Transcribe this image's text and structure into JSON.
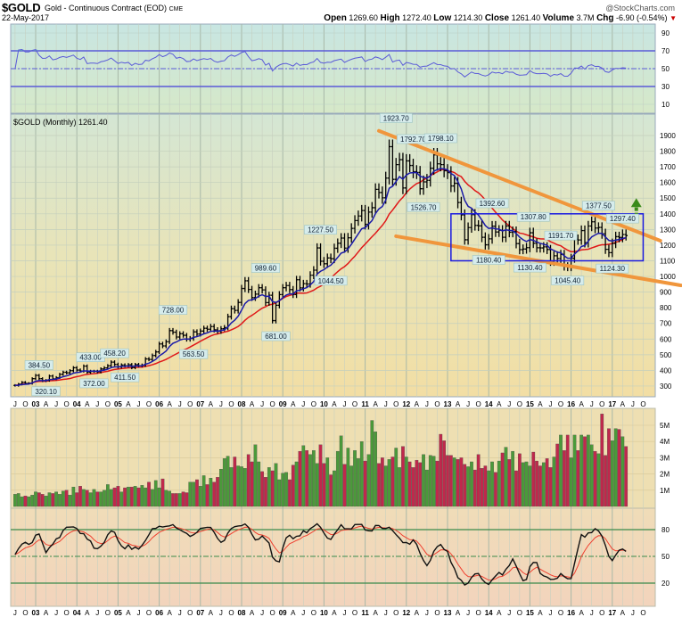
{
  "header": {
    "symbol": "$GOLD",
    "description": "Gold - Continuous Contract (EOD)",
    "exchange": "CME",
    "date": "22-May-2017",
    "brand": "@StockCharts.com",
    "quote": {
      "open_label": "Open",
      "open": "1269.60",
      "high_label": "High",
      "high": "1272.40",
      "low_label": "Low",
      "low": "1214.30",
      "close_label": "Close",
      "close": "1261.40",
      "volume_label": "Volume",
      "volume": "3.7M",
      "chg_label": "Chg",
      "chg": "-6.90 (-0.54%)",
      "chg_icon": "down-triangle-icon"
    }
  },
  "colors": {
    "bars": "#000000",
    "ma_fast": "#1a1aa8",
    "ma_slow": "#e01818",
    "vol_up": "#4a9a3a",
    "vol_down": "#c0284c",
    "trendline": "#f0963c",
    "box": "#1a1ae0",
    "arrow": "#3a8a1a",
    "rsi": "#5a5ad8",
    "rsi_fill": "#5ab4b0",
    "stoch_k": "#111111",
    "stoch_d": "#f04030",
    "stoch_lines": "#3a8a4a"
  },
  "chart_data": {
    "type": "ohlc",
    "title": "$GOLD (Monthly) 1261.40",
    "start_month": "2002-07",
    "period": "monthly",
    "close": [
      304,
      312,
      324,
      317,
      317,
      347,
      368,
      347,
      334,
      336,
      364,
      346,
      354,
      375,
      388,
      384,
      398,
      417,
      402,
      396,
      427,
      388,
      394,
      394,
      391,
      409,
      416,
      429,
      453,
      438,
      422,
      434,
      429,
      436,
      418,
      437,
      430,
      433,
      473,
      470,
      495,
      518,
      569,
      556,
      583,
      654,
      644,
      613,
      634,
      624,
      599,
      604,
      646,
      632,
      651,
      669,
      663,
      680,
      659,
      650,
      666,
      673,
      743,
      794,
      783,
      834,
      923,
      972,
      917,
      865,
      887,
      928,
      914,
      833,
      880,
      718,
      816,
      884,
      928,
      942,
      916,
      884,
      979,
      927,
      954,
      952,
      1008,
      1040,
      1182,
      1097,
      1081,
      1118,
      1113,
      1180,
      1212,
      1245,
      1181,
      1247,
      1307,
      1357,
      1386,
      1421,
      1333,
      1411,
      1439,
      1556,
      1536,
      1502,
      1628,
      1829,
      1620,
      1714,
      1746,
      1565,
      1738,
      1709,
      1669,
      1664,
      1560,
      1604,
      1614,
      1691,
      1776,
      1719,
      1714,
      1675,
      1663,
      1578,
      1595,
      1472,
      1393,
      1234,
      1312,
      1395,
      1326,
      1323,
      1250,
      1202,
      1240,
      1321,
      1284,
      1295,
      1250,
      1322,
      1282,
      1287,
      1210,
      1171,
      1175,
      1184,
      1279,
      1212,
      1183,
      1182,
      1189,
      1172,
      1095,
      1132,
      1114,
      1141,
      1064,
      1060,
      1116,
      1237,
      1233,
      1293,
      1216,
      1322,
      1349,
      1309,
      1313,
      1273,
      1173,
      1152,
      1211,
      1254,
      1249,
      1268,
      1261
    ],
    "volume_millions": [
      0.75,
      0.8,
      0.6,
      0.65,
      0.6,
      0.7,
      0.9,
      0.85,
      0.75,
      0.65,
      0.85,
      0.8,
      0.9,
      0.75,
      0.95,
      1.0,
      0.7,
      1.2,
      0.85,
      1.25,
      1.05,
      1.0,
      0.85,
      1.05,
      0.9,
      0.9,
      1.0,
      1.35,
      1.05,
      1.15,
      1.25,
      0.9,
      1.15,
      1.2,
      1.2,
      1.25,
      1.15,
      1.3,
      1.15,
      1.5,
      1.05,
      1.6,
      1.15,
      1.7,
      1.0,
      0.95,
      0.8,
      0.8,
      0.8,
      0.9,
      0.85,
      1.5,
      1.5,
      1.65,
      1.25,
      1.9,
      1.35,
      1.75,
      1.5,
      1.8,
      2.3,
      2.95,
      3.1,
      2.4,
      3.05,
      2.5,
      2.45,
      2.35,
      3.2,
      2.75,
      3.8,
      2.75,
      2.15,
      1.8,
      2.4,
      2.2,
      2.65,
      1.65,
      2.05,
      2.1,
      1.65,
      2.55,
      2.75,
      3.4,
      3.75,
      3.45,
      3.2,
      3.45,
      2.65,
      3.8,
      2.65,
      3.0,
      1.95,
      2.2,
      3.4,
      4.35,
      2.6,
      3.6,
      2.5,
      3.45,
      2.95,
      4.0,
      2.8,
      3.2,
      5.3,
      4.6,
      2.65,
      3.0,
      2.5,
      2.9,
      3.05,
      3.6,
      2.4,
      3.7,
      3.05,
      2.75,
      2.4,
      2.85,
      2.7,
      3.2,
      2.25,
      3.15,
      3.1,
      2.8,
      4.45,
      4.05,
      3.15,
      3.15,
      3.0,
      2.9,
      3.0,
      2.6,
      2.45,
      2.75,
      2.25,
      3.2,
      2.35,
      2.5,
      2.2,
      2.75,
      2.1,
      2.8,
      3.3,
      3.65,
      2.9,
      3.4,
      2.2,
      3.25,
      2.7,
      2.75,
      2.5,
      3.35,
      2.8,
      2.5,
      2.7,
      2.95,
      2.4,
      3.05,
      3.85,
      4.4,
      3.45,
      4.4,
      3.0,
      4.4,
      3.45,
      4.4,
      4.3,
      4.4,
      3.8,
      3.4,
      3.25,
      5.7,
      3.15,
      4.8,
      4.05,
      4.8,
      4.75,
      4.3,
      3.7
    ],
    "price_axis": {
      "min": 250,
      "max": 1950,
      "ticks": [
        "300",
        "400",
        "500",
        "600",
        "700",
        "800",
        "900",
        "1000",
        "1100",
        "1200",
        "1300",
        "1400",
        "1500",
        "1600",
        "1700",
        "1800",
        "1900"
      ]
    },
    "rsi_axis": {
      "ticks": [
        "10",
        "30",
        "50",
        "70",
        "90"
      ],
      "levels": [
        30,
        50,
        70
      ]
    },
    "volume_axis": {
      "ticks": [
        "1M",
        "2M",
        "3M",
        "4M",
        "5M"
      ]
    },
    "stoch_axis": {
      "ticks": [
        "20",
        "50",
        "80"
      ],
      "levels": [
        20,
        50,
        80
      ]
    },
    "x_ticks": [
      "J",
      "O",
      "03",
      "A",
      "J",
      "O",
      "04",
      "A",
      "J",
      "O",
      "05",
      "A",
      "J",
      "O",
      "06",
      "A",
      "J",
      "O",
      "07",
      "A",
      "J",
      "O",
      "08",
      "A",
      "J",
      "O",
      "09",
      "A",
      "J",
      "O",
      "10",
      "A",
      "J",
      "O",
      "11",
      "A",
      "J",
      "O",
      "12",
      "A",
      "J",
      "O",
      "13",
      "A",
      "J",
      "O",
      "14",
      "A",
      "J",
      "O",
      "15",
      "A",
      "J",
      "O",
      "16",
      "A",
      "J",
      "O",
      "17",
      "A",
      "J",
      "O"
    ],
    "annotations": [
      {
        "text": "384.50",
        "month": 7,
        "price": 384.5,
        "pos": "above"
      },
      {
        "text": "320.10",
        "month": 9,
        "price": 320.1,
        "pos": "below"
      },
      {
        "text": "433.00",
        "month": 22,
        "price": 433,
        "pos": "above"
      },
      {
        "text": "372.00",
        "month": 23,
        "price": 372,
        "pos": "below"
      },
      {
        "text": "458.20",
        "month": 29,
        "price": 458.2,
        "pos": "above"
      },
      {
        "text": "411.50",
        "month": 32,
        "price": 411.5,
        "pos": "below"
      },
      {
        "text": "728.00",
        "month": 46,
        "price": 728,
        "pos": "above"
      },
      {
        "text": "563.50",
        "month": 52,
        "price": 563.5,
        "pos": "below"
      },
      {
        "text": "989.60",
        "month": 73,
        "price": 989.6,
        "pos": "above"
      },
      {
        "text": "681.00",
        "month": 76,
        "price": 681,
        "pos": "below"
      },
      {
        "text": "1227.50",
        "month": 89,
        "price": 1227.5,
        "pos": "above"
      },
      {
        "text": "1044.50",
        "month": 92,
        "price": 1044.5,
        "pos": "below"
      },
      {
        "text": "1923.70",
        "month": 111,
        "price": 1923.7,
        "pos": "above"
      },
      {
        "text": "1792.70",
        "month": 116,
        "price": 1792.7,
        "pos": "above"
      },
      {
        "text": "1526.70",
        "month": 119,
        "price": 1526.7,
        "pos": "below"
      },
      {
        "text": "1798.10",
        "month": 124,
        "price": 1798.1,
        "pos": "above"
      },
      {
        "text": "1392.60",
        "month": 139,
        "price": 1392.6,
        "pos": "above"
      },
      {
        "text": "1180.40",
        "month": 138,
        "price": 1180.4,
        "pos": "below"
      },
      {
        "text": "1307.80",
        "month": 151,
        "price": 1307.8,
        "pos": "above"
      },
      {
        "text": "1130.40",
        "month": 150,
        "price": 1130.4,
        "pos": "below"
      },
      {
        "text": "1191.70",
        "month": 159,
        "price": 1191.7,
        "pos": "above"
      },
      {
        "text": "1045.40",
        "month": 161,
        "price": 1045.4,
        "pos": "below"
      },
      {
        "text": "1377.50",
        "month": 170,
        "price": 1377.5,
        "pos": "above"
      },
      {
        "text": "1124.30",
        "month": 174,
        "price": 1124.3,
        "pos": "below"
      },
      {
        "text": "1297.40",
        "month": 177,
        "price": 1297.4,
        "pos": "above"
      }
    ],
    "trendlines": [
      {
        "name": "upper-resistance",
        "from": {
          "month": 106,
          "price": 1930
        },
        "to": {
          "month": 188,
          "price": 1228
        }
      },
      {
        "name": "lower-support",
        "from": {
          "month": 111,
          "price": 1257
        },
        "to": {
          "month": 194,
          "price": 943
        }
      }
    ],
    "range_box": {
      "from_month": 127,
      "to_month": 183,
      "top": 1400,
      "bottom": 1100
    },
    "breakout_arrow": {
      "month": 181,
      "from": 1350,
      "to": 1500
    }
  }
}
